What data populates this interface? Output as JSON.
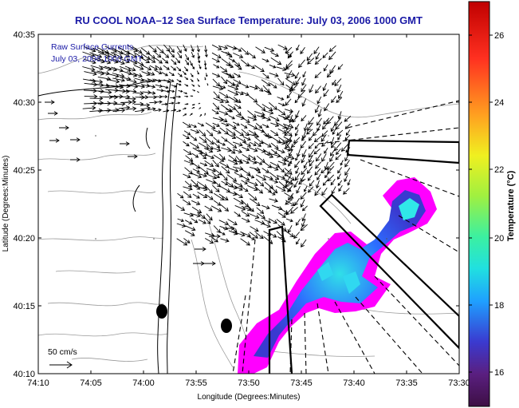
{
  "title": "RU COOL  NOAA–12  Sea Surface Temperature:  July 03, 2006 1000 GMT",
  "legend": {
    "line1": "Raw Surface Currents",
    "line2": "July 03, 2006 1000 GMT"
  },
  "scale_label": "50 cm/s",
  "x_axis": {
    "label": "Longitude (Degrees:Minutes)",
    "ticks": [
      "74:10",
      "74:05",
      "74:00",
      "73:55",
      "73:50",
      "73:45",
      "73:40",
      "73:35",
      "73:30"
    ]
  },
  "y_axis": {
    "label": "Latitude (Degrees:Minutes)",
    "ticks": [
      "40:35",
      "40:30",
      "40:25",
      "40:20",
      "40:15",
      "40:10"
    ]
  },
  "colorbar": {
    "label": "Temperature (°C)",
    "ticks": [
      "26",
      "24",
      "22",
      "20",
      "18",
      "16"
    ],
    "colors": [
      "#3d0f44",
      "#5a1f80",
      "#3a3ad0",
      "#1fa0ff",
      "#20e0e0",
      "#3cf0a0",
      "#a0f040",
      "#f0f020",
      "#ffa020",
      "#ff3020",
      "#c00000"
    ]
  },
  "colors": {
    "title": "#1a1aa6",
    "land_contour": "#9a9a9a",
    "coastline": "#000000",
    "sst_magenta": "#ff00ff",
    "sst_blue": "#2d6dff",
    "sst_cyan": "#20c8f0"
  }
}
